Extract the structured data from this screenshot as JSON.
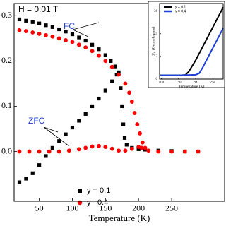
{
  "chart_data": [
    {
      "type": "scatter",
      "annotations": [
        "H = 0.01 T",
        "FC",
        "ZFC"
      ],
      "x_label": "Temperature (K)",
      "xlim": [
        12,
        330
      ],
      "xticks": [
        50,
        100,
        150,
        200,
        250
      ],
      "ylim": [
        -0.11,
        0.327
      ],
      "yticks": [
        {
          "value": 0,
          "label": "0.0"
        },
        0.1,
        0.2,
        0.3
      ],
      "series": [
        {
          "name": "y = 0.1",
          "color": "#000000",
          "marker": "square",
          "x": [
            20,
            30,
            40,
            50,
            60,
            70,
            80,
            90,
            100,
            110,
            120,
            130,
            140,
            150,
            158,
            165,
            170,
            173,
            175,
            177,
            179,
            182,
            190,
            200,
            210,
            230,
            250,
            270,
            290,
            20,
            30,
            40,
            50,
            60,
            70,
            80,
            90,
            100,
            110,
            120,
            130,
            140,
            150,
            160,
            167
          ],
          "values": [
            0.292,
            0.289,
            0.286,
            0.283,
            0.279,
            0.275,
            0.27,
            0.265,
            0.259,
            0.252,
            0.245,
            0.236,
            0.226,
            0.213,
            0.2,
            0.188,
            0.175,
            0.14,
            0.1,
            0.06,
            0.03,
            0.015,
            0.008,
            0.005,
            0.004,
            0.002,
            0.001,
            0,
            0,
            -0.068,
            -0.06,
            -0.048,
            -0.03,
            -0.01,
            0.008,
            0.023,
            0.038,
            0.053,
            0.068,
            0.083,
            0.1,
            0.117,
            0.135,
            0.155,
            0.17
          ]
        },
        {
          "name": "y =0.4",
          "color": "#ff0000",
          "marker": "circle",
          "x": [
            20,
            30,
            40,
            50,
            60,
            70,
            80,
            90,
            100,
            110,
            120,
            130,
            140,
            150,
            160,
            170,
            180,
            186,
            190,
            194,
            198,
            202,
            206,
            210,
            20,
            35,
            50,
            65,
            80,
            95,
            110,
            120,
            130,
            140,
            150,
            160,
            170,
            180,
            190,
            200,
            205,
            215,
            230,
            250,
            270,
            290
          ],
          "values": [
            0.268,
            0.266,
            0.263,
            0.26,
            0.257,
            0.254,
            0.25,
            0.246,
            0.242,
            0.236,
            0.23,
            0.222,
            0.212,
            0.2,
            0.187,
            0.17,
            0.15,
            0.13,
            0.11,
            0.085,
            0.06,
            0.04,
            0.02,
            0.008,
            0,
            0,
            0,
            0,
            0,
            0.002,
            0.005,
            0.008,
            0.011,
            0.012,
            0.01,
            0.006,
            0.002,
            0.002,
            0.006,
            0.01,
            0.008,
            0.002,
            0,
            0,
            0,
            0
          ]
        }
      ]
    },
    {
      "type": "line",
      "x_label": "Temperature (K)",
      "y_label": "1/χ (Oe.mole/emu)",
      "xlim": [
        95,
        280
      ],
      "xticks": [
        100,
        150,
        200,
        250
      ],
      "ylim": [
        0,
        40
      ],
      "yticks": [
        0,
        12,
        24,
        36
      ],
      "series": [
        {
          "name": "y = 0.1",
          "color": "#000000",
          "x": [
            95,
            120,
            150,
            170,
            180,
            200,
            220,
            240,
            260,
            280
          ],
          "values": [
            2,
            2,
            2,
            2.2,
            4,
            10,
            17,
            24,
            31,
            38
          ]
        },
        {
          "name": "y = 0.4",
          "color": "#1f3fd6",
          "x": [
            95,
            150,
            200,
            210,
            220,
            240,
            260,
            280
          ],
          "values": [
            2,
            2,
            2.3,
            3,
            6,
            13,
            20,
            27
          ]
        }
      ]
    }
  ]
}
